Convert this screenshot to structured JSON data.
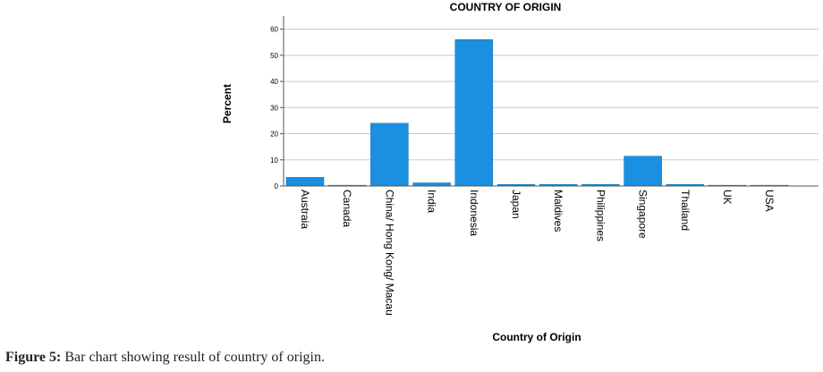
{
  "chart_data": {
    "type": "bar",
    "title": "COUNTRY OF ORIGIN",
    "xlabel": "Country of Origin",
    "ylabel": "Percent",
    "ylim": [
      0,
      65
    ],
    "yticks": [
      0,
      10,
      20,
      30,
      40,
      50,
      60
    ],
    "grid": true,
    "categories": [
      "Austraia",
      "Canada",
      "China/ Hong Kong/ Macau",
      "India",
      "Indonesia",
      "Japan",
      "Maldives",
      "Philippines",
      "Singapore",
      "Thailand",
      "UK",
      "USA"
    ],
    "values": [
      3.3,
      0.3,
      24.0,
      1.2,
      56.0,
      0.6,
      0.6,
      0.6,
      11.4,
      0.6,
      0.3,
      0.3
    ],
    "bar_color": "#1b8fe0"
  },
  "caption": {
    "label": "Figure 5:",
    "text": " Bar chart showing result of country of origin."
  }
}
